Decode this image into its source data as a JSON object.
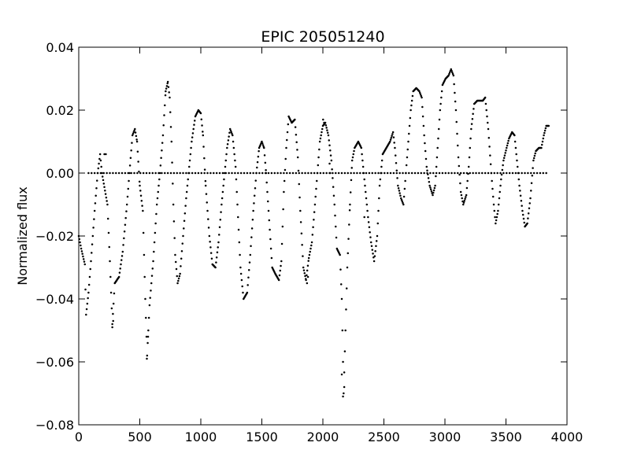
{
  "chart_data": {
    "type": "scatter",
    "title": "EPIC 205051240",
    "xlabel": "",
    "ylabel": "Normalized flux",
    "xlim": [
      0,
      4000
    ],
    "ylim": [
      -0.08,
      0.04
    ],
    "x_ticks": [
      0,
      500,
      1000,
      1500,
      2000,
      2500,
      3000,
      3500,
      4000
    ],
    "x_tick_labels": [
      "0",
      "500",
      "1000",
      "1500",
      "2000",
      "2500",
      "3000",
      "3500",
      "4000"
    ],
    "y_ticks": [
      0.04,
      0.02,
      0.0,
      -0.02,
      -0.04,
      -0.06,
      -0.08
    ],
    "y_tick_labels": [
      "0.04",
      "0.02",
      "0.00",
      "−0.02",
      "−0.04",
      "−0.06",
      "−0.08"
    ],
    "grid": false,
    "marker_color": "#000000",
    "series": [
      {
        "curve": [
          [
            0,
            -0.02
          ],
          [
            20,
            -0.024
          ],
          [
            50,
            -0.029
          ],
          [
            60,
            -0.045
          ],
          [
            80,
            -0.038
          ],
          [
            100,
            -0.028
          ],
          [
            130,
            -0.012
          ],
          [
            155,
            0.0
          ],
          [
            175,
            0.006
          ],
          [
            190,
            0.0
          ],
          [
            235,
            -0.01
          ],
          [
            255,
            -0.028
          ],
          [
            275,
            -0.048
          ],
          [
            295,
            -0.035
          ],
          [
            330,
            -0.033
          ],
          [
            360,
            -0.025
          ],
          [
            395,
            -0.01
          ],
          [
            415,
            0.0
          ],
          [
            440,
            0.012
          ],
          [
            460,
            0.014
          ],
          [
            478,
            0.01
          ],
          [
            500,
            -0.004
          ],
          [
            525,
            -0.012
          ],
          [
            545,
            -0.04
          ],
          [
            560,
            -0.058
          ],
          [
            580,
            -0.042
          ],
          [
            610,
            -0.028
          ],
          [
            640,
            -0.01
          ],
          [
            665,
            0.0
          ],
          [
            690,
            0.012
          ],
          [
            712,
            0.026
          ],
          [
            730,
            0.029
          ],
          [
            745,
            0.024
          ],
          [
            760,
            0.01
          ],
          [
            775,
            -0.01
          ],
          [
            790,
            -0.026
          ],
          [
            810,
            -0.035
          ],
          [
            830,
            -0.032
          ],
          [
            855,
            -0.02
          ],
          [
            880,
            -0.008
          ],
          [
            900,
            0.0
          ],
          [
            925,
            0.01
          ],
          [
            955,
            0.018
          ],
          [
            980,
            0.02
          ],
          [
            1000,
            0.019
          ],
          [
            1018,
            0.012
          ],
          [
            1040,
            -0.004
          ],
          [
            1070,
            -0.02
          ],
          [
            1095,
            -0.029
          ],
          [
            1120,
            -0.03
          ],
          [
            1145,
            -0.022
          ],
          [
            1170,
            -0.01
          ],
          [
            1195,
            0.0
          ],
          [
            1215,
            0.008
          ],
          [
            1240,
            0.014
          ],
          [
            1260,
            0.012
          ],
          [
            1285,
            0.002
          ],
          [
            1305,
            -0.014
          ],
          [
            1325,
            -0.03
          ],
          [
            1350,
            -0.04
          ],
          [
            1380,
            -0.038
          ],
          [
            1405,
            -0.026
          ],
          [
            1430,
            -0.012
          ],
          [
            1455,
            0.0
          ],
          [
            1478,
            0.008
          ],
          [
            1500,
            0.01
          ],
          [
            1518,
            0.008
          ],
          [
            1535,
            0.0
          ],
          [
            1560,
            -0.015
          ],
          [
            1585,
            -0.03
          ],
          [
            1610,
            -0.032
          ],
          [
            1640,
            -0.034
          ],
          [
            1660,
            -0.028
          ],
          [
            1680,
            -0.006
          ],
          [
            1700,
            0.008
          ],
          [
            1720,
            0.018
          ],
          [
            1745,
            0.016
          ],
          [
            1770,
            0.017
          ],
          [
            1795,
            0.005
          ],
          [
            1815,
            -0.012
          ],
          [
            1840,
            -0.03
          ],
          [
            1862,
            -0.034
          ],
          [
            1885,
            -0.027
          ],
          [
            1910,
            -0.022
          ],
          [
            1935,
            -0.01
          ],
          [
            1955,
            0.0
          ],
          [
            1975,
            0.01
          ],
          [
            2000,
            0.015
          ],
          [
            2020,
            0.016
          ],
          [
            2045,
            0.012
          ],
          [
            2070,
            0.004
          ],
          [
            2095,
            -0.01
          ],
          [
            2115,
            -0.024
          ],
          [
            2140,
            -0.026
          ],
          [
            2155,
            -0.04
          ],
          [
            2170,
            -0.07
          ],
          [
            2185,
            -0.05
          ],
          [
            2200,
            -0.03
          ],
          [
            2222,
            -0.01
          ],
          [
            2240,
            0.004
          ],
          [
            2260,
            0.008
          ],
          [
            2290,
            0.01
          ],
          [
            2315,
            0.008
          ],
          [
            2340,
            -0.002
          ],
          [
            2370,
            -0.014
          ],
          [
            2395,
            -0.022
          ],
          [
            2420,
            -0.028
          ],
          [
            2445,
            -0.02
          ],
          [
            2465,
            -0.004
          ],
          [
            2490,
            0.006
          ],
          [
            2520,
            0.008
          ],
          [
            2550,
            0.01
          ],
          [
            2575,
            0.013
          ],
          [
            2590,
            0.008
          ],
          [
            2615,
            -0.004
          ],
          [
            2640,
            -0.008
          ],
          [
            2660,
            -0.01
          ],
          [
            2680,
            0.0
          ],
          [
            2700,
            0.01
          ],
          [
            2720,
            0.02
          ],
          [
            2740,
            0.026
          ],
          [
            2765,
            0.027
          ],
          [
            2790,
            0.026
          ],
          [
            2810,
            0.024
          ],
          [
            2830,
            0.012
          ],
          [
            2850,
            0.002
          ],
          [
            2875,
            -0.004
          ],
          [
            2900,
            -0.007
          ],
          [
            2920,
            -0.004
          ],
          [
            2940,
            0.008
          ],
          [
            2960,
            0.02
          ],
          [
            2980,
            0.028
          ],
          [
            3005,
            0.03
          ],
          [
            3030,
            0.031
          ],
          [
            3050,
            0.033
          ],
          [
            3070,
            0.031
          ],
          [
            3090,
            0.02
          ],
          [
            3110,
            0.005
          ],
          [
            3130,
            -0.006
          ],
          [
            3150,
            -0.01
          ],
          [
            3175,
            -0.007
          ],
          [
            3195,
            0.002
          ],
          [
            3215,
            0.014
          ],
          [
            3240,
            0.022
          ],
          [
            3265,
            0.023
          ],
          [
            3290,
            0.023
          ],
          [
            3310,
            0.023
          ],
          [
            3330,
            0.024
          ],
          [
            3355,
            0.014
          ],
          [
            3380,
            0.0
          ],
          [
            3400,
            -0.01
          ],
          [
            3415,
            -0.016
          ],
          [
            3435,
            -0.012
          ],
          [
            3460,
            -0.002
          ],
          [
            3480,
            0.004
          ],
          [
            3505,
            0.008
          ],
          [
            3525,
            0.011
          ],
          [
            3550,
            0.013
          ],
          [
            3570,
            0.012
          ],
          [
            3590,
            0.004
          ],
          [
            3610,
            -0.004
          ],
          [
            3635,
            -0.012
          ],
          [
            3655,
            -0.017
          ],
          [
            3675,
            -0.016
          ],
          [
            3700,
            -0.008
          ],
          [
            3725,
            0.004
          ],
          [
            3745,
            0.007
          ],
          [
            3770,
            0.008
          ],
          [
            3790,
            0.008
          ],
          [
            3810,
            0.012
          ],
          [
            3830,
            0.015
          ],
          [
            3850,
            0.015
          ]
        ],
        "baseline": {
          "y": 0.0,
          "x_start": 80,
          "x_end": 3850,
          "x_step": 25
        },
        "extra_points": [
          [
            210,
            0.006
          ],
          [
            222,
            0.006
          ],
          [
            275,
            -0.049
          ],
          [
            282,
            -0.047
          ],
          [
            558,
            -0.059
          ],
          [
            568,
            -0.052
          ],
          [
            2155,
            -0.064
          ],
          [
            2165,
            -0.071
          ],
          [
            2175,
            -0.068
          ],
          [
            2002,
            0.017
          ],
          [
            2010,
            0.016
          ],
          [
            2055,
            0.003
          ],
          [
            2340,
            -0.014
          ],
          [
            2060,
            0.0
          ],
          [
            1870,
            -0.035
          ],
          [
            1878,
            -0.033
          ]
        ]
      }
    ]
  }
}
